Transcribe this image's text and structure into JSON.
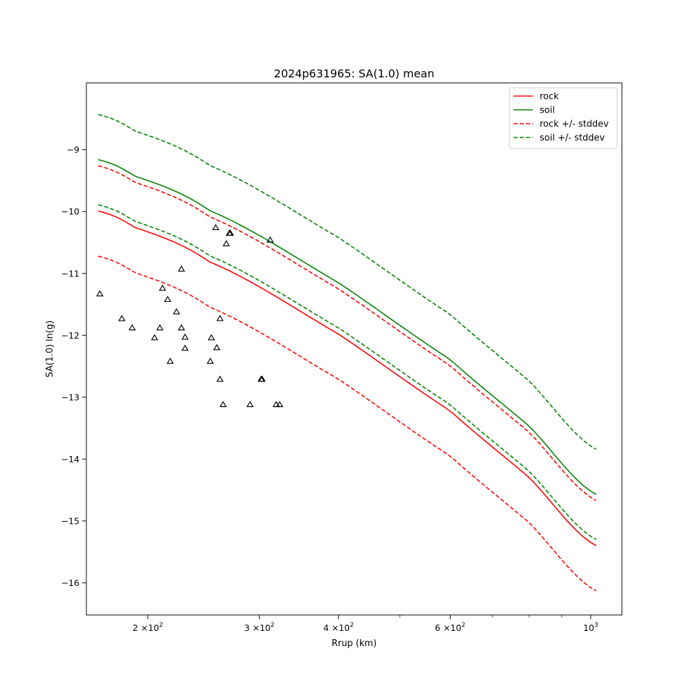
{
  "chart_data": {
    "type": "line",
    "title": "2024p631965: SA(1.0) mean",
    "xlabel": "Rrup (km)",
    "ylabel": "SA(1.0) ln(g)",
    "xscale": "log",
    "xlim": [
      160,
      1120
    ],
    "ylim": [
      -16.52,
      -7.92
    ],
    "grid": false,
    "legend": "top-right",
    "x_ticks": [
      {
        "value": 200,
        "mantissa": "2",
        "base": "×10",
        "exp": "2"
      },
      {
        "value": 300,
        "mantissa": "3",
        "base": "×10",
        "exp": "2"
      },
      {
        "value": 400,
        "mantissa": "4",
        "base": "×10",
        "exp": "2"
      },
      {
        "value": 600,
        "mantissa": "6",
        "base": "×10",
        "exp": "2"
      },
      {
        "value": 1000,
        "mantissa": "",
        "base": "10",
        "exp": "3"
      }
    ],
    "x_minor_ticks": [
      500,
      700,
      800,
      900
    ],
    "y_ticks": [
      -9,
      -10,
      -11,
      -12,
      -13,
      -14,
      -15,
      -16
    ],
    "y_tick_labels": [
      "−9",
      "−10",
      "−11",
      "−12",
      "−13",
      "−14",
      "−15",
      "−16"
    ],
    "x": [
      167,
      190,
      250,
      400,
      600,
      800,
      1020
    ],
    "series": [
      {
        "name": "rock",
        "color": "#ff0000",
        "dash": "solid",
        "values": [
          -9.99,
          -10.25,
          -10.81,
          -11.98,
          -13.22,
          -14.3,
          -15.4
        ]
      },
      {
        "name": "soil",
        "color": "#008000",
        "dash": "solid",
        "values": [
          -9.16,
          -9.42,
          -9.98,
          -11.15,
          -12.39,
          -13.47,
          -14.57
        ]
      },
      {
        "name": "rock +/- stddev",
        "color": "#ff0000",
        "dash": "dashed",
        "values": [
          -9.26,
          -9.52,
          -10.08,
          -11.25,
          -12.49,
          -13.57,
          -14.67
        ]
      },
      {
        "name": "",
        "color": "#ff0000",
        "dash": "dashed",
        "values": [
          -10.72,
          -10.98,
          -11.54,
          -12.71,
          -13.95,
          -15.03,
          -16.13
        ]
      },
      {
        "name": "soil +/- stddev",
        "color": "#008000",
        "dash": "dashed",
        "values": [
          -8.43,
          -8.69,
          -9.25,
          -10.42,
          -11.66,
          -12.74,
          -13.84
        ]
      },
      {
        "name": "",
        "color": "#008000",
        "dash": "dashed",
        "values": [
          -9.89,
          -10.15,
          -10.71,
          -11.88,
          -13.12,
          -14.2,
          -15.3
        ]
      }
    ],
    "legend_entries": [
      {
        "name": "rock",
        "color": "#ff0000",
        "dash": "solid"
      },
      {
        "name": "soil",
        "color": "#008000",
        "dash": "solid"
      },
      {
        "name": "rock +/- stddev",
        "color": "#ff0000",
        "dash": "dashed"
      },
      {
        "name": "soil +/- stddev",
        "color": "#008000",
        "dash": "dashed"
      }
    ],
    "observations": {
      "marker": "triangle",
      "color": "#000000",
      "points": [
        [
          168,
          -11.33
        ],
        [
          182,
          -11.73
        ],
        [
          189,
          -11.88
        ],
        [
          205,
          -12.04
        ],
        [
          209,
          -11.88
        ],
        [
          211,
          -11.24
        ],
        [
          215,
          -11.42
        ],
        [
          217,
          -12.42
        ],
        [
          222,
          -11.62
        ],
        [
          226,
          -10.93
        ],
        [
          226,
          -11.88
        ],
        [
          229,
          -12.03
        ],
        [
          229,
          -12.21
        ],
        [
          252,
          -12.04
        ],
        [
          251,
          -12.42
        ],
        [
          256,
          -10.26
        ],
        [
          257,
          -12.2
        ],
        [
          260,
          -11.73
        ],
        [
          260,
          -12.71
        ],
        [
          263,
          -13.12
        ],
        [
          266,
          -10.52
        ],
        [
          269,
          -10.35
        ],
        [
          270,
          -10.35
        ],
        [
          290,
          -13.12
        ],
        [
          302,
          -12.71
        ],
        [
          303,
          -12.71
        ],
        [
          312,
          -10.46
        ],
        [
          319,
          -13.12
        ],
        [
          323,
          -13.12
        ]
      ]
    }
  }
}
